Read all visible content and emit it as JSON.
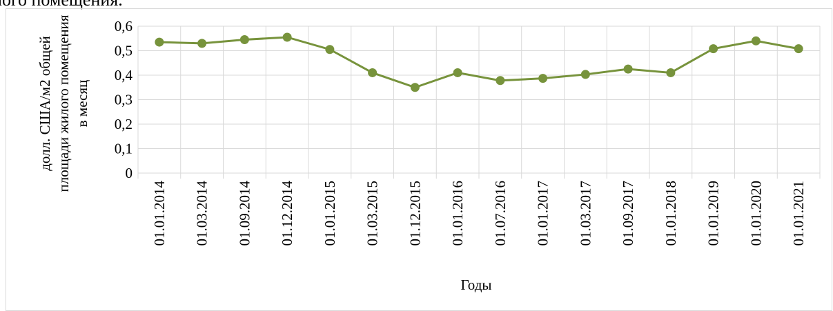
{
  "context_text": "лого помещения.",
  "chart_data": {
    "type": "line",
    "y_label": [
      "долл. США/м2 общей",
      "площади жилого помещения",
      "в месяц"
    ],
    "x_label": "Годы",
    "categories": [
      "01.01.2014",
      "01.03.2014",
      "01.09.2014",
      "01.12.2014",
      "01.01.2015",
      "01.03.2015",
      "01.12.2015",
      "01.01.2016",
      "01.07.2016",
      "01.01.2017",
      "01.03.2017",
      "01.09.2017",
      "01.01.2018",
      "01.01.2019",
      "01.01.2020",
      "01.01.2021"
    ],
    "series": [
      {
        "color": "#77933c",
        "values": [
          0.535,
          0.53,
          0.545,
          0.555,
          0.505,
          0.41,
          0.35,
          0.41,
          0.378,
          0.387,
          0.403,
          0.425,
          0.41,
          0.508,
          0.54,
          0.508
        ]
      }
    ],
    "ylim": [
      0,
      0.6
    ],
    "yticks": [
      0,
      {
        "value": 0.1,
        "label": "0,1"
      },
      {
        "value": 0.2,
        "label": "0,2"
      },
      {
        "value": 0.3,
        "label": "0,3"
      },
      {
        "value": 0.4,
        "label": "0,4"
      },
      {
        "value": 0.5,
        "label": "0,5"
      },
      {
        "value": 0.6,
        "label": "0,6"
      }
    ],
    "grid": true
  }
}
